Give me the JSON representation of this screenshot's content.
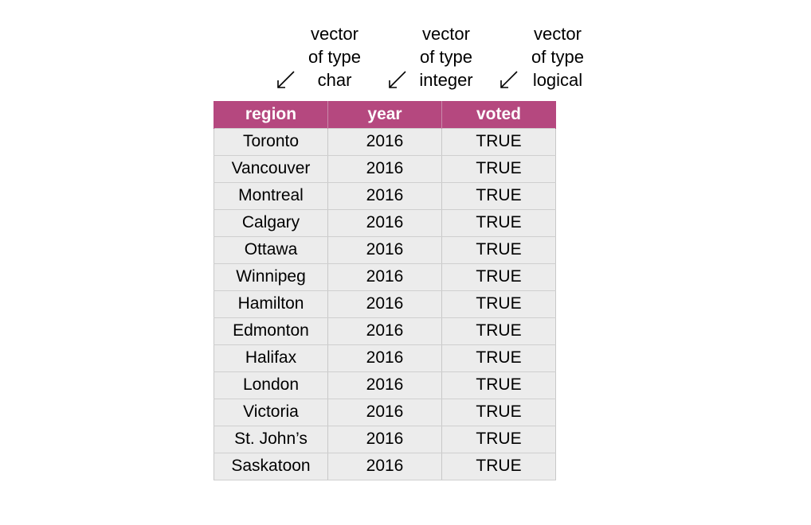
{
  "colors": {
    "header_bg": "#b5487f",
    "cell_bg": "#ececec",
    "header_text": "#ffffff"
  },
  "annotations": [
    {
      "line1": "vector",
      "line2": "of type",
      "line3": "char",
      "icon": "arrow-down-left-icon"
    },
    {
      "line1": "vector",
      "line2": "of type",
      "line3": "integer",
      "icon": "arrow-down-left-icon"
    },
    {
      "line1": "vector",
      "line2": "of type",
      "line3": "logical",
      "icon": "arrow-down-left-icon"
    }
  ],
  "table": {
    "columns": [
      "region",
      "year",
      "voted"
    ],
    "rows": [
      [
        "Toronto",
        "2016",
        "TRUE"
      ],
      [
        "Vancouver",
        "2016",
        "TRUE"
      ],
      [
        "Montreal",
        "2016",
        "TRUE"
      ],
      [
        "Calgary",
        "2016",
        "TRUE"
      ],
      [
        "Ottawa",
        "2016",
        "TRUE"
      ],
      [
        "Winnipeg",
        "2016",
        "TRUE"
      ],
      [
        "Hamilton",
        "2016",
        "TRUE"
      ],
      [
        "Edmonton",
        "2016",
        "TRUE"
      ],
      [
        "Halifax",
        "2016",
        "TRUE"
      ],
      [
        "London",
        "2016",
        "TRUE"
      ],
      [
        "Victoria",
        "2016",
        "TRUE"
      ],
      [
        "St. John’s",
        "2016",
        "TRUE"
      ],
      [
        "Saskatoon",
        "2016",
        "TRUE"
      ]
    ]
  }
}
